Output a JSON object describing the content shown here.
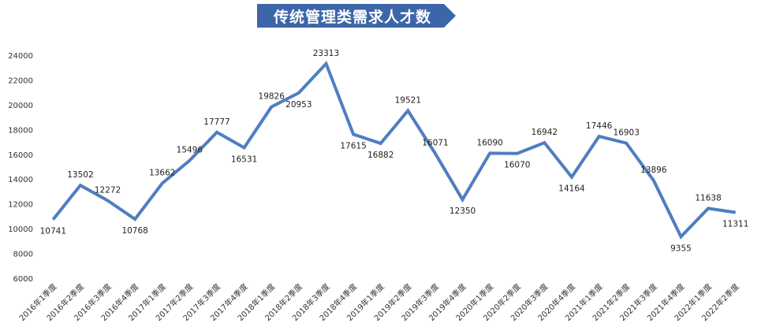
{
  "chart_data": {
    "type": "line",
    "title": "传统管理类需求人才数",
    "categories": [
      "2016年1季度",
      "2016年2季度",
      "2016年3季度",
      "2016年4季度",
      "2017年1季度",
      "2017年2季度",
      "2017年3季度",
      "2017年4季度",
      "2018年1季度",
      "2018年2季度",
      "2018年3季度",
      "2018年4季度",
      "2019年1季度",
      "2019年2季度",
      "2019年3季度",
      "2019年4季度",
      "2020年1季度",
      "2020年2季度",
      "2020年3季度",
      "2020年4季度",
      "2021年1季度",
      "2021年2季度",
      "2021年3季度",
      "2021年4季度",
      "2022年1季度",
      "2022年2季度"
    ],
    "values": [
      10741,
      13502,
      12272,
      10768,
      13662,
      15496,
      17777,
      16531,
      19826,
      20953,
      23313,
      17615,
      16882,
      19521,
      16071,
      12350,
      16090,
      16070,
      16942,
      14164,
      17446,
      16903,
      13896,
      9355,
      11638,
      11311
    ],
    "label_positions": [
      "below",
      "above",
      "above",
      "below",
      "above",
      "above",
      "above",
      "below",
      "above",
      "below",
      "above",
      "below",
      "below",
      "above",
      "above",
      "below",
      "above",
      "below",
      "above",
      "below",
      "above",
      "above",
      "above",
      "below",
      "above",
      "below"
    ],
    "yticks": [
      6000,
      8000,
      10000,
      12000,
      14000,
      16000,
      18000,
      20000,
      22000,
      24000
    ],
    "ylim": [
      6000,
      24000
    ],
    "grid": false,
    "legend": "none",
    "line_color": "#4f7ec0"
  }
}
